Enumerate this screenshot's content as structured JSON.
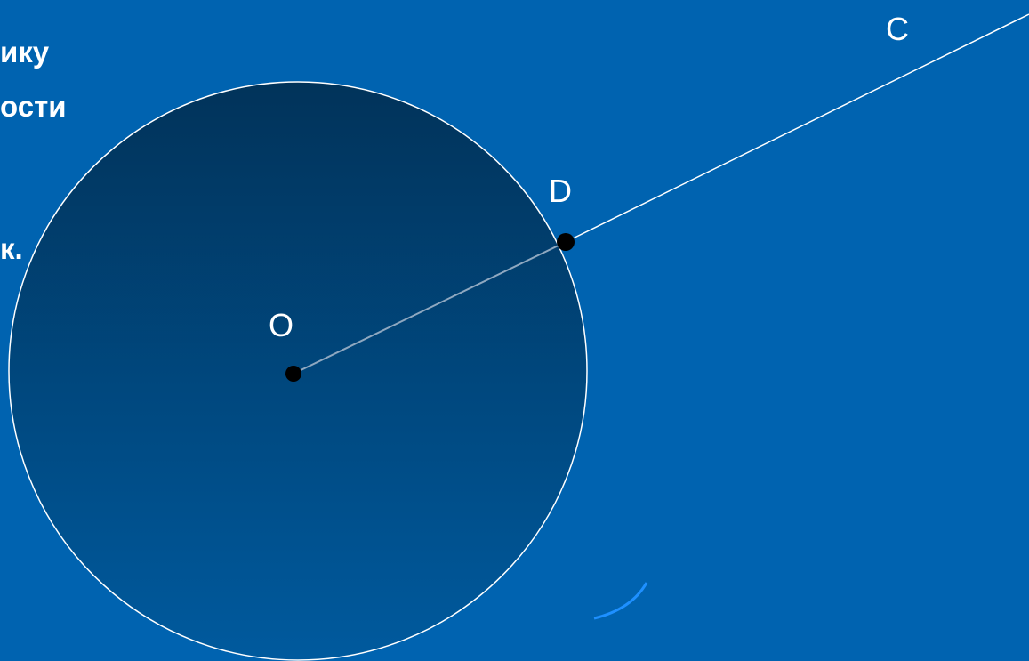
{
  "labels": {
    "O": "O",
    "D": "D",
    "C": "C"
  },
  "text_fragments": [
    "ику",
    "ости",
    "к."
  ],
  "colors": {
    "background": "#0063b0",
    "circle_fill_top": "#01335a",
    "circle_fill_bottom": "#005a9e",
    "stroke": "#ffffff",
    "inner_segment": "#8fa8c0",
    "point": "#000000",
    "arc_accent": "#1e90ff"
  }
}
